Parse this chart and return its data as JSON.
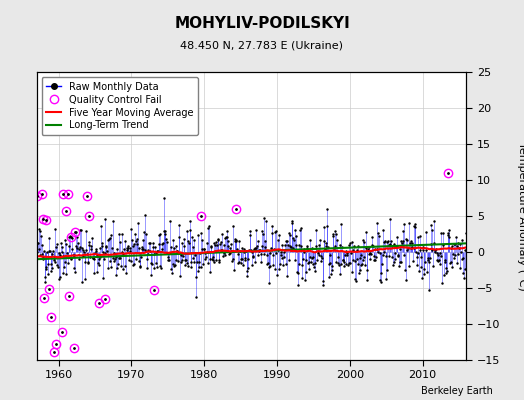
{
  "title": "MOHYLIV-PODILSKYI",
  "subtitle": "48.450 N, 27.783 E (Ukraine)",
  "ylabel": "Temperature Anomaly (°C)",
  "watermark": "Berkeley Earth",
  "xlim": [
    1957,
    2016
  ],
  "ylim": [
    -15,
    25
  ],
  "yticks": [
    -15,
    -10,
    -5,
    0,
    5,
    10,
    15,
    20,
    25
  ],
  "xticks": [
    1960,
    1970,
    1980,
    1990,
    2000,
    2010
  ],
  "bg_color": "#e8e8e8",
  "plot_bg_color": "#ffffff",
  "seed": 42
}
